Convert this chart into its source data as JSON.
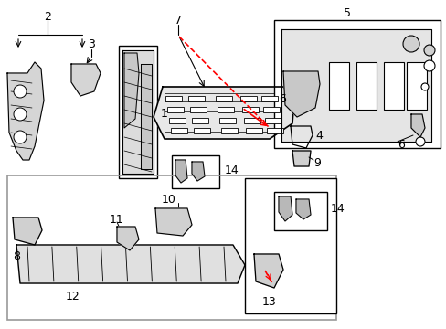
{
  "bg_color": "#ffffff",
  "line_color": "#000000",
  "red_color": "#ff0000",
  "fig_width": 4.89,
  "fig_height": 3.6,
  "dpi": 100
}
